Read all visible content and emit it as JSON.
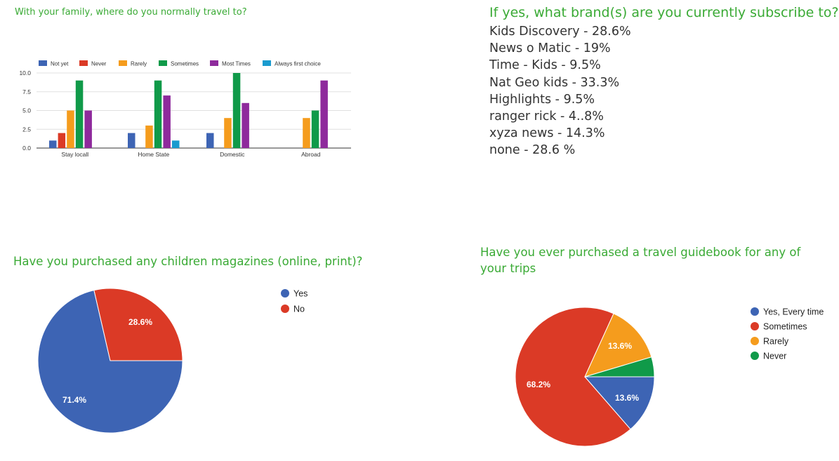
{
  "questions": {
    "travel": "With your family, where do you normally travel to?",
    "brands": "If yes, what brand(s) are you currently subscribe to?",
    "magazines": "Have you purchased any children magazines (online, print)?",
    "guidebook": "Have you ever purchased a travel guidebook for any of your trips"
  },
  "brands": [
    "Kids Discovery - 28.6%",
    "News o Matic - 19%",
    "Time - Kids - 9.5%",
    "Nat Geo kids - 33.3%",
    "Highlights - 9.5%",
    "ranger rick - 4..8%",
    "xyza news - 14.3%",
    "none - 28.6 %"
  ],
  "chart_data": [
    {
      "type": "bar",
      "title": "",
      "categories": [
        "Stay locall",
        "Home State",
        "Domestic",
        "Abroad"
      ],
      "series": [
        {
          "name": "Not yet",
          "color": "#3d64b4",
          "values": [
            1,
            2,
            2,
            0
          ]
        },
        {
          "name": "Never",
          "color": "#db3a26",
          "values": [
            2,
            0,
            0,
            0
          ]
        },
        {
          "name": "Rarely",
          "color": "#f59c1d",
          "values": [
            5,
            3,
            4,
            4
          ]
        },
        {
          "name": "Sometimes",
          "color": "#109a49",
          "values": [
            9,
            9,
            10,
            5
          ]
        },
        {
          "name": "Most Times",
          "color": "#8e2a9c",
          "values": [
            5,
            7,
            6,
            9
          ]
        },
        {
          "name": "Always first choice",
          "color": "#1a9bcf",
          "values": [
            0,
            1,
            0,
            0
          ]
        }
      ],
      "ylim": [
        0,
        10
      ],
      "yticks": [
        "0.0",
        "2.5",
        "5.0",
        "7.5",
        "10.0"
      ],
      "legend": "top",
      "grid": true
    },
    {
      "type": "pie",
      "slices": [
        {
          "name": "Yes",
          "value": 71.4,
          "label": "71.4%",
          "color": "#3d64b4"
        },
        {
          "name": "No",
          "value": 28.6,
          "label": "28.6%",
          "color": "#db3a26"
        }
      ],
      "legend": "right"
    },
    {
      "type": "pie",
      "slices": [
        {
          "name": "Yes, Every time",
          "value": 13.6,
          "label": "13.6%",
          "color": "#3d64b4"
        },
        {
          "name": "Sometimes",
          "value": 68.2,
          "label": "68.2%",
          "color": "#db3a26"
        },
        {
          "name": "Rarely",
          "value": 13.6,
          "label": "13.6%",
          "color": "#f59c1d"
        },
        {
          "name": "Never",
          "value": 4.6,
          "label": "",
          "color": "#109a49"
        }
      ],
      "legend": "right"
    }
  ]
}
